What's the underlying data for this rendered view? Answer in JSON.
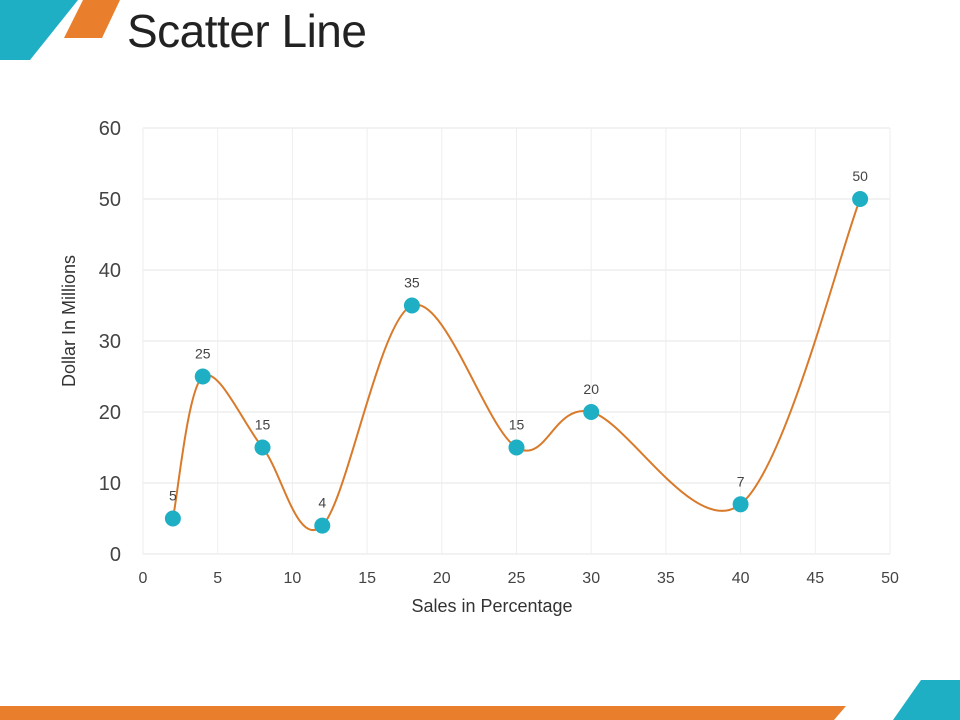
{
  "slide": {
    "title": "Scatter Line",
    "colors": {
      "accent_teal": "#1eafc4",
      "accent_orange": "#e97f2c",
      "line": "#d97a2b"
    }
  },
  "chart_data": {
    "type": "scatter",
    "subtype": "smooth-line-with-markers",
    "xlabel": "Sales in Percentage",
    "ylabel": "Dollar In Millions",
    "xlim": [
      0,
      50
    ],
    "ylim": [
      0,
      60
    ],
    "xticks": [
      0,
      5,
      10,
      15,
      20,
      25,
      30,
      35,
      40,
      45,
      50
    ],
    "yticks": [
      0,
      10,
      20,
      30,
      40,
      50,
      60
    ],
    "grid": true,
    "series": [
      {
        "x": [
          2,
          4,
          8,
          12,
          18,
          25,
          30,
          40,
          48
        ],
        "y": [
          5,
          25,
          15,
          4,
          35,
          15,
          20,
          7,
          50
        ],
        "labels": [
          "5",
          "25",
          "15",
          "4",
          "35",
          "15",
          "20",
          "7",
          "50"
        ],
        "marker_color": "#1eafc4",
        "line_color": "#d97a2b"
      }
    ]
  }
}
